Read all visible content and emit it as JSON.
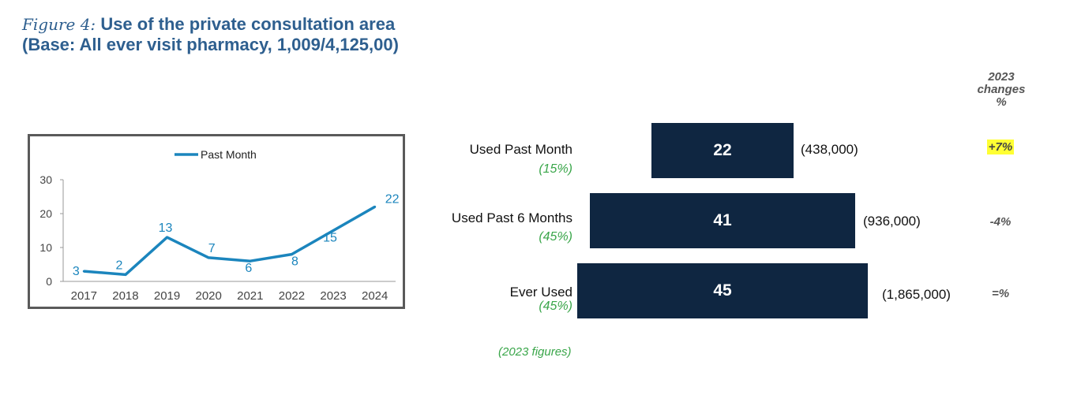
{
  "title": {
    "figure_label": "Figure 4:",
    "main": "Use of the private consultation area",
    "base": "(Base: All ever visit pharmacy, 1,009/4,125,00)"
  },
  "chart_data": {
    "type": "line",
    "legend": "Past Month",
    "legend_position": "top",
    "x": [
      "2017",
      "2018",
      "2019",
      "2020",
      "2021",
      "2022",
      "2023",
      "2024"
    ],
    "series": [
      {
        "name": "Past Month",
        "values": [
          3,
          2,
          13,
          7,
          6,
          8,
          15,
          22
        ],
        "color": "#1b85bd"
      }
    ],
    "data_labels": [
      "3",
      "2",
      "13",
      "7",
      "6",
      "8",
      "15",
      "22"
    ],
    "y_ticks": [
      "0",
      "10",
      "20",
      "30"
    ],
    "ylim": [
      0,
      30
    ],
    "grid": false
  },
  "funnel": {
    "rows": [
      {
        "label": "Used Past Month",
        "pct": "(15%)",
        "value": "22",
        "count": "(438,000)",
        "change": "+7%",
        "highlight": true
      },
      {
        "label": "Used Past 6 Months",
        "pct": "(45%)",
        "value": "41",
        "count": "(936,000)",
        "change": "-4%",
        "highlight": false
      },
      {
        "label": "Ever Used",
        "pct": "(45%)",
        "value": "45",
        "count": "(1,865,000)",
        "change": "=%",
        "highlight": false
      }
    ],
    "changes_header": [
      "2023",
      "changes",
      "%"
    ],
    "footnote": "(2023 figures)",
    "bar_color": "#0f2641",
    "highlight_color": "#ffff33",
    "pct_color": "#3aa64a"
  }
}
